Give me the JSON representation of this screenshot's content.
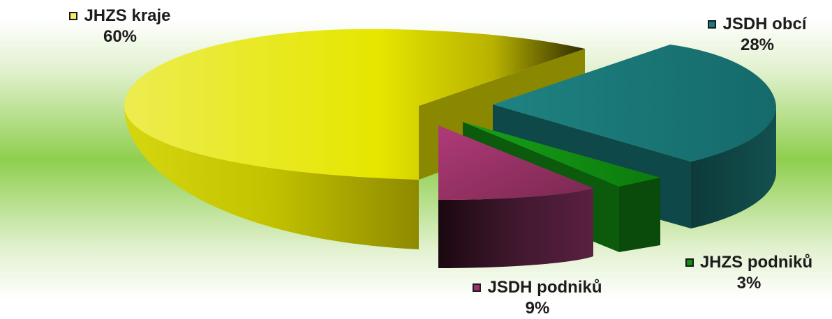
{
  "chart_data": {
    "type": "pie",
    "variant": "3d-exploded",
    "categories": [
      "JHZS kraje",
      "JSDH obcí",
      "JHZS podniků",
      "JSDH podniků"
    ],
    "values": [
      60,
      28,
      3,
      9
    ],
    "value_labels": [
      "60%",
      "28%",
      "3%",
      "9%"
    ],
    "colors": [
      "#e8e800",
      "#1a7a7a",
      "#109010",
      "#a0306a"
    ],
    "legend": "inline-labels"
  }
}
